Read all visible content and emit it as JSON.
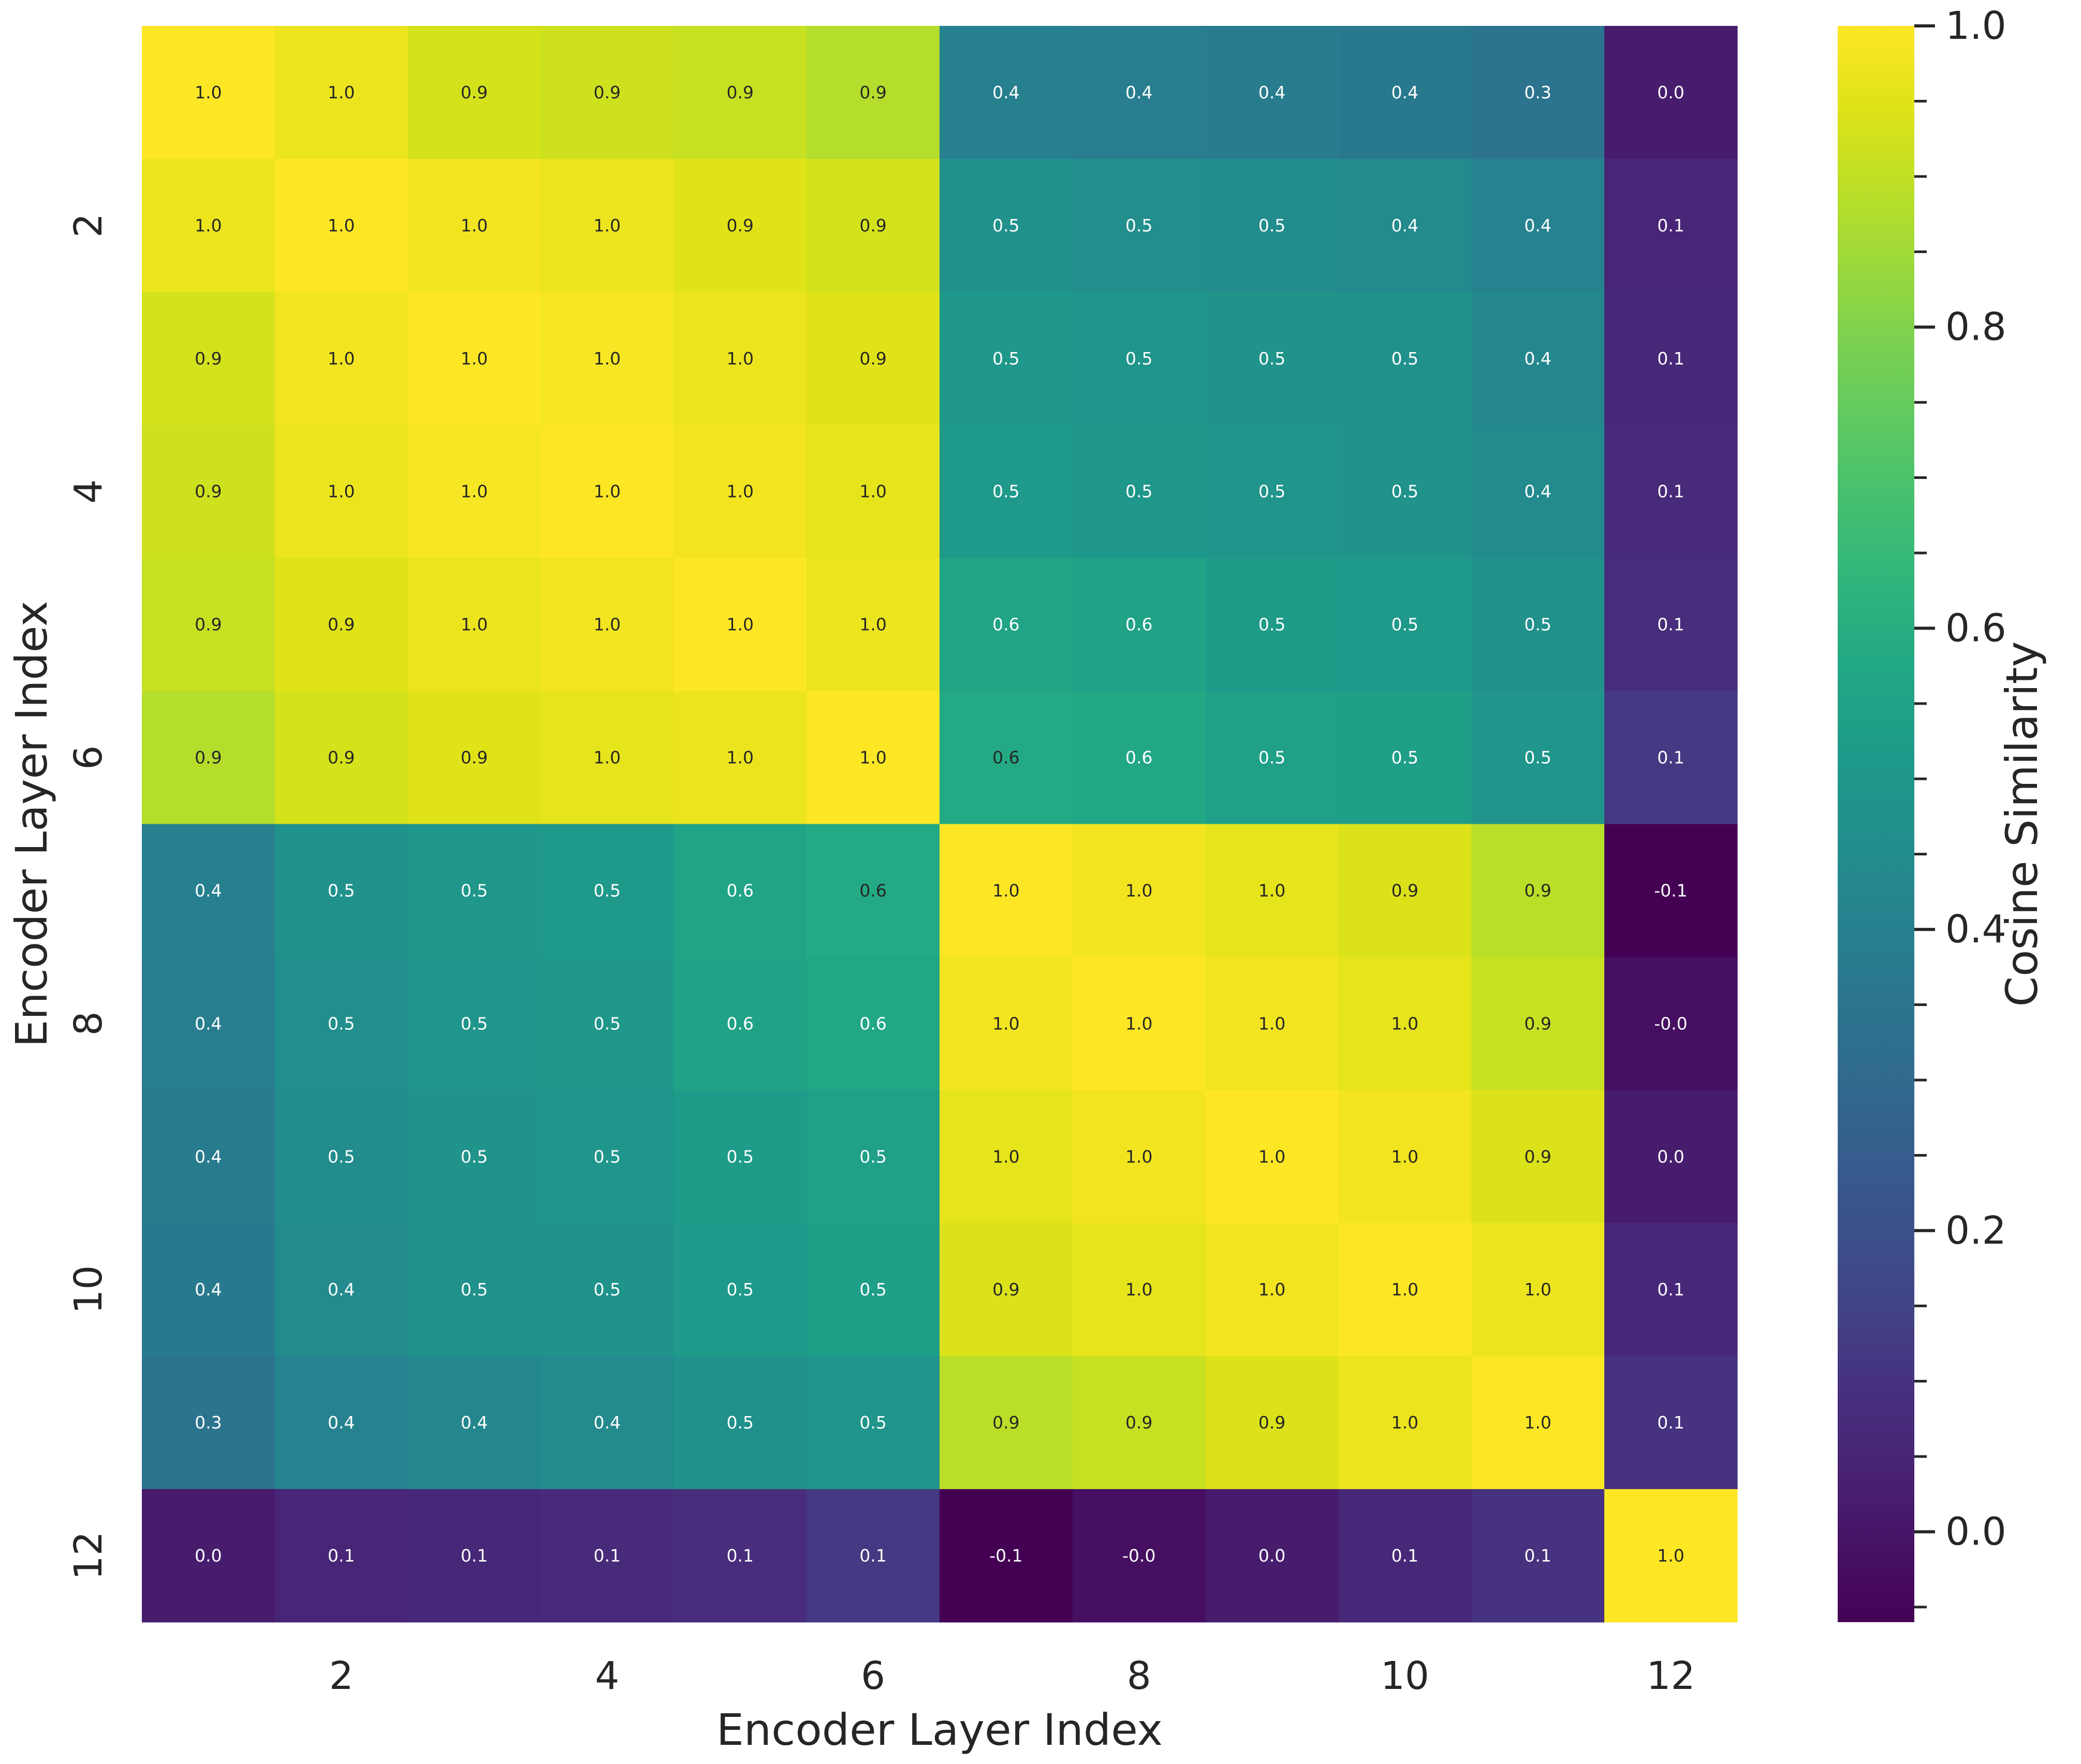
{
  "chart_data": {
    "type": "heatmap",
    "title": "",
    "xlabel": "Encoder Layer Index",
    "ylabel": "Encoder Layer Index",
    "colorbar_label": "Cosine Similarity",
    "colormap": "viridis",
    "vmin": -0.06,
    "vmax": 1.0,
    "x_ticks": [
      2,
      4,
      6,
      8,
      10,
      12
    ],
    "y_ticks": [
      2,
      4,
      6,
      8,
      10,
      12
    ],
    "x_tick_labels": [
      "2",
      "4",
      "6",
      "8",
      "10",
      "12"
    ],
    "y_tick_labels": [
      "2",
      "4",
      "6",
      "8",
      "10",
      "12"
    ],
    "colorbar_ticks": [
      1.0,
      0.8,
      0.6,
      0.4,
      0.2,
      0.0
    ],
    "colorbar_tick_labels": [
      "1.0",
      "0.8",
      "0.6",
      "0.4",
      "0.2",
      "0.0"
    ],
    "rows": 12,
    "cols": 12,
    "values": [
      [
        1.0,
        0.97,
        0.93,
        0.92,
        0.91,
        0.88,
        0.4,
        0.39,
        0.38,
        0.37,
        0.34,
        0.02
      ],
      [
        0.97,
        1.0,
        0.98,
        0.97,
        0.95,
        0.93,
        0.47,
        0.46,
        0.45,
        0.44,
        0.41,
        0.05
      ],
      [
        0.93,
        0.98,
        1.0,
        0.99,
        0.97,
        0.95,
        0.5,
        0.49,
        0.48,
        0.47,
        0.43,
        0.06
      ],
      [
        0.92,
        0.97,
        0.99,
        1.0,
        0.98,
        0.96,
        0.51,
        0.5,
        0.49,
        0.48,
        0.44,
        0.07
      ],
      [
        0.91,
        0.95,
        0.97,
        0.98,
        1.0,
        0.97,
        0.56,
        0.55,
        0.52,
        0.51,
        0.47,
        0.08
      ],
      [
        0.88,
        0.93,
        0.95,
        0.96,
        0.97,
        1.0,
        0.58,
        0.57,
        0.54,
        0.53,
        0.49,
        0.12
      ],
      [
        0.4,
        0.47,
        0.5,
        0.51,
        0.56,
        0.58,
        1.0,
        0.98,
        0.96,
        0.94,
        0.89,
        -0.06
      ],
      [
        0.39,
        0.46,
        0.49,
        0.5,
        0.55,
        0.57,
        0.98,
        1.0,
        0.98,
        0.96,
        0.91,
        -0.02
      ],
      [
        0.38,
        0.45,
        0.48,
        0.49,
        0.52,
        0.54,
        0.96,
        0.98,
        1.0,
        0.98,
        0.94,
        0.02
      ],
      [
        0.37,
        0.44,
        0.47,
        0.48,
        0.51,
        0.53,
        0.94,
        0.96,
        0.98,
        1.0,
        0.97,
        0.06
      ],
      [
        0.34,
        0.41,
        0.43,
        0.44,
        0.47,
        0.49,
        0.89,
        0.91,
        0.94,
        0.97,
        1.0,
        0.1
      ],
      [
        0.02,
        0.05,
        0.06,
        0.07,
        0.08,
        0.12,
        -0.06,
        -0.02,
        0.02,
        0.06,
        0.1,
        1.0
      ]
    ]
  }
}
